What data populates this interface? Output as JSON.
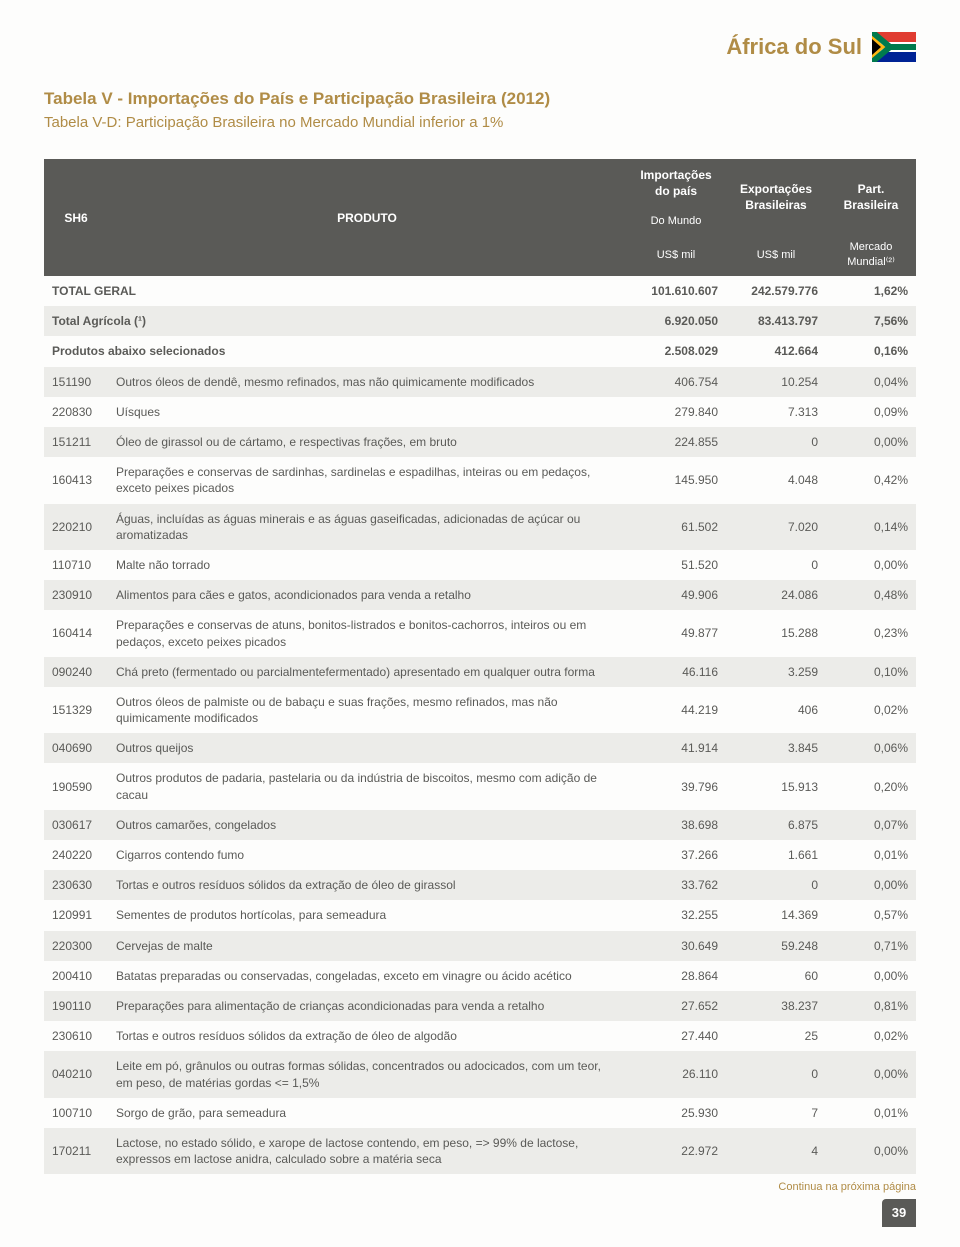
{
  "header": {
    "country": "África do Sul"
  },
  "titles": {
    "main": "Tabela V - Importações do País e Participação Brasileira (2012)",
    "sub": "Tabela V-D: Participação Brasileira no Mercado Mundial inferior a 1%"
  },
  "table": {
    "head": {
      "sh6": "SH6",
      "produto": "PRODUTO",
      "importacoes": "Importações do país",
      "exportacoes": "Exportações Brasileiras",
      "part": "Part. Brasileira",
      "do_mundo": "Do Mundo",
      "us_mil_1": "US$ mil",
      "us_mil_2": "US$ mil",
      "mercado": "Mercado Mundial⁽²⁾"
    },
    "rows": [
      {
        "sh6": "",
        "prod": "TOTAL GERAL",
        "c1": "101.610.607",
        "c2": "242.579.776",
        "c3": "1,62%",
        "bold": true
      },
      {
        "sh6": "",
        "prod": "Total Agrícola (¹)",
        "c1": "6.920.050",
        "c2": "83.413.797",
        "c3": "7,56%",
        "bold": true
      },
      {
        "sh6": "",
        "prod": "Produtos abaixo selecionados",
        "c1": "2.508.029",
        "c2": "412.664",
        "c3": "0,16%",
        "bold": true
      },
      {
        "sh6": "151190",
        "prod": "Outros óleos de dendê, mesmo refinados, mas não quimicamente modificados",
        "c1": "406.754",
        "c2": "10.254",
        "c3": "0,04%"
      },
      {
        "sh6": "220830",
        "prod": "Uísques",
        "c1": "279.840",
        "c2": "7.313",
        "c3": "0,09%"
      },
      {
        "sh6": "151211",
        "prod": "Óleo de girassol ou de cártamo, e respectivas frações, em bruto",
        "c1": "224.855",
        "c2": "0",
        "c3": "0,00%"
      },
      {
        "sh6": "160413",
        "prod": "Preparações e conservas de sardinhas, sardinelas e espadilhas, inteiras ou em pedaços, exceto peixes picados",
        "c1": "145.950",
        "c2": "4.048",
        "c3": "0,42%"
      },
      {
        "sh6": "220210",
        "prod": "Águas, incluídas as águas minerais e as águas gaseificadas, adicionadas de açúcar ou aromatizadas",
        "c1": "61.502",
        "c2": "7.020",
        "c3": "0,14%"
      },
      {
        "sh6": "110710",
        "prod": "Malte não torrado",
        "c1": "51.520",
        "c2": "0",
        "c3": "0,00%"
      },
      {
        "sh6": "230910",
        "prod": "Alimentos para cães e gatos, acondicionados para venda a retalho",
        "c1": "49.906",
        "c2": "24.086",
        "c3": "0,48%"
      },
      {
        "sh6": "160414",
        "prod": "Preparações e conservas de atuns, bonitos-listrados e bonitos-cachorros, inteiros ou em pedaços, exceto peixes picados",
        "c1": "49.877",
        "c2": "15.288",
        "c3": "0,23%"
      },
      {
        "sh6": "090240",
        "prod": "Chá preto (fermentado ou parcialmentefermentado) apresentado em qualquer outra forma",
        "c1": "46.116",
        "c2": "3.259",
        "c3": "0,10%"
      },
      {
        "sh6": "151329",
        "prod": "Outros óleos de palmiste ou de babaçu e suas frações, mesmo refinados, mas não quimicamente modificados",
        "c1": "44.219",
        "c2": "406",
        "c3": "0,02%"
      },
      {
        "sh6": "040690",
        "prod": "Outros queijos",
        "c1": "41.914",
        "c2": "3.845",
        "c3": "0,06%"
      },
      {
        "sh6": "190590",
        "prod": "Outros produtos de padaria, pastelaria ou da indústria de biscoitos, mesmo com adição de cacau",
        "c1": "39.796",
        "c2": "15.913",
        "c3": "0,20%"
      },
      {
        "sh6": "030617",
        "prod": "Outros camarões, congelados",
        "c1": "38.698",
        "c2": "6.875",
        "c3": "0,07%"
      },
      {
        "sh6": "240220",
        "prod": "Cigarros contendo fumo",
        "c1": "37.266",
        "c2": "1.661",
        "c3": "0,01%"
      },
      {
        "sh6": "230630",
        "prod": "Tortas e outros resíduos sólidos da extração de óleo de girassol",
        "c1": "33.762",
        "c2": "0",
        "c3": "0,00%"
      },
      {
        "sh6": "120991",
        "prod": "Sementes de produtos hortícolas, para semeadura",
        "c1": "32.255",
        "c2": "14.369",
        "c3": "0,57%"
      },
      {
        "sh6": "220300",
        "prod": "Cervejas de malte",
        "c1": "30.649",
        "c2": "59.248",
        "c3": "0,71%"
      },
      {
        "sh6": "200410",
        "prod": "Batatas preparadas ou conservadas, congeladas, exceto em vinagre ou ácido acético",
        "c1": "28.864",
        "c2": "60",
        "c3": "0,00%"
      },
      {
        "sh6": "190110",
        "prod": "Preparações para alimentação de crianças acondicionadas para venda a retalho",
        "c1": "27.652",
        "c2": "38.237",
        "c3": "0,81%"
      },
      {
        "sh6": "230610",
        "prod": "Tortas e outros resíduos sólidos da extração de óleo de algodão",
        "c1": "27.440",
        "c2": "25",
        "c3": "0,02%"
      },
      {
        "sh6": "040210",
        "prod": "Leite em pó, grânulos ou outras formas sólidas, concentrados ou adocicados, com um teor, em peso, de matérias gordas <= 1,5%",
        "c1": "26.110",
        "c2": "0",
        "c3": "0,00%"
      },
      {
        "sh6": "100710",
        "prod": "Sorgo de grão, para semeadura",
        "c1": "25.930",
        "c2": "7",
        "c3": "0,01%"
      },
      {
        "sh6": "170211",
        "prod": "Lactose, no estado sólido, e xarope de lactose contendo, em peso, => 99% de lactose, expressos em lactose anidra, calculado sobre a matéria seca",
        "c1": "22.972",
        "c2": "4",
        "c3": "0,00%"
      }
    ]
  },
  "footer": {
    "continue": "Continua na próxima página",
    "pagenum": "39"
  }
}
